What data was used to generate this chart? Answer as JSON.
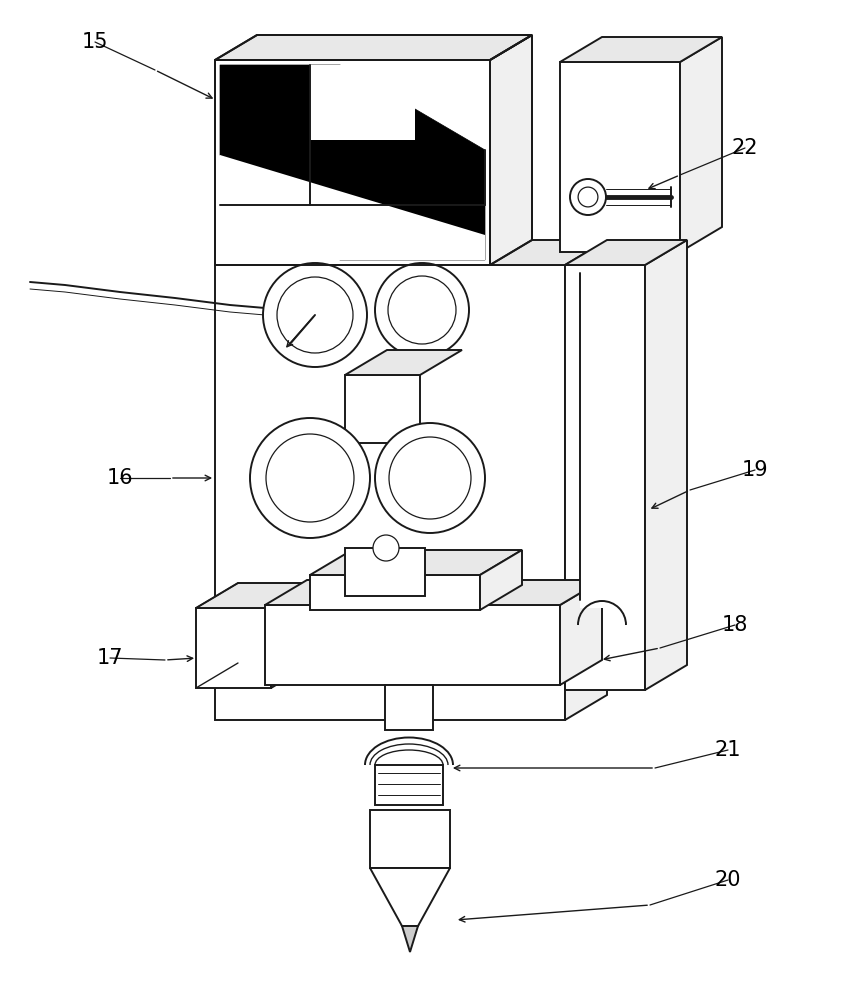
{
  "bg_color": "#ffffff",
  "lc": "#1a1a1a",
  "lw": 1.4,
  "figsize": [
    8.64,
    10.0
  ],
  "dpi": 100,
  "ox": 0.055,
  "oy": 0.032
}
